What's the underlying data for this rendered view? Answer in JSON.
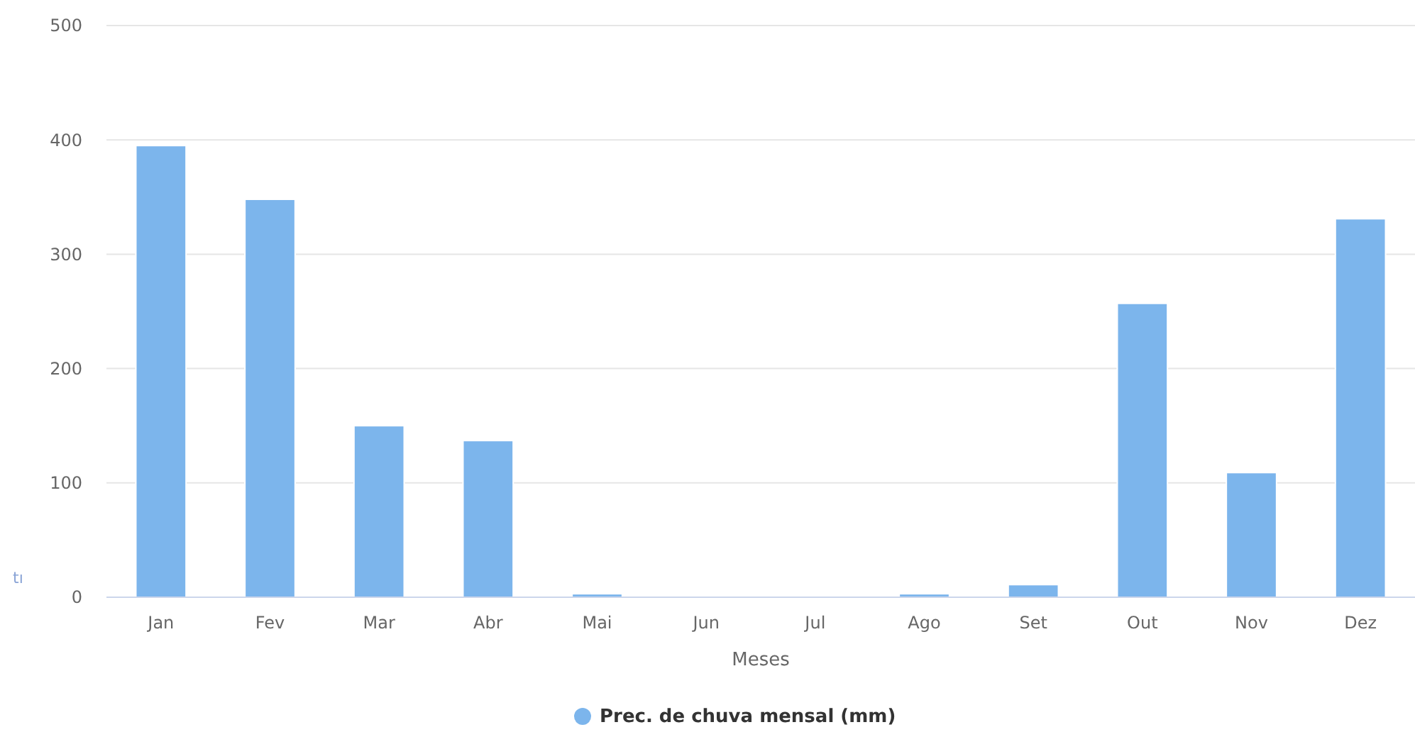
{
  "chart_data": {
    "type": "bar",
    "xlabel": "Meses",
    "categories": [
      "Jan",
      "Fev",
      "Mar",
      "Abr",
      "Mai",
      "Jun",
      "Jul",
      "Ago",
      "Set",
      "Out",
      "Nov",
      "Dez"
    ],
    "series": [
      {
        "name": "Prec. de chuva mensal (mm)",
        "color": "#7cb5ec",
        "values": [
          395,
          348,
          150,
          137,
          3,
          0,
          0,
          3,
          11,
          257,
          109,
          331
        ]
      }
    ],
    "ylim": [
      0,
      500
    ],
    "yticks": [
      0,
      100,
      200,
      300,
      400,
      500
    ],
    "grid": "y",
    "legend": "bottom",
    "marker": "circle",
    "annotations": [
      "tı"
    ]
  }
}
